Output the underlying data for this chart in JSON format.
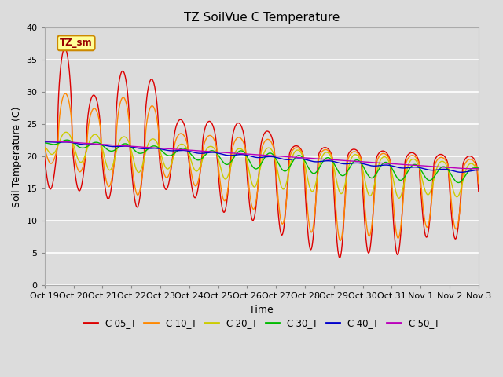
{
  "title": "TZ SoilVue C Temperature",
  "xlabel": "Time",
  "ylabel": "Soil Temperature (C)",
  "ylim": [
    0,
    40
  ],
  "background_color": "#dcdcdc",
  "plot_bg_color": "#dcdcdc",
  "grid_color": "#ffffff",
  "series_colors": {
    "C-05_T": "#dd0000",
    "C-10_T": "#ff8800",
    "C-20_T": "#cccc00",
    "C-30_T": "#00bb00",
    "C-40_T": "#0000cc",
    "C-50_T": "#bb00bb"
  },
  "series_labels": [
    "C-05_T",
    "C-10_T",
    "C-20_T",
    "C-30_T",
    "C-40_T",
    "C-50_T"
  ],
  "xtick_labels": [
    "Oct 19",
    "Oct 20",
    "Oct 21",
    "Oct 22",
    "Oct 23",
    "Oct 24",
    "Oct 25",
    "Oct 26",
    "Oct 27",
    "Oct 28",
    "Oct 29",
    "Oct 30",
    "Oct 31",
    "Nov 1",
    "Nov 2",
    "Nov 3"
  ],
  "annotation_text": "TZ_sm",
  "annotation_bg": "#ffff99",
  "annotation_border": "#cc8800",
  "title_fontsize": 11,
  "axis_fontsize": 9,
  "tick_fontsize": 8,
  "legend_fontsize": 8.5
}
